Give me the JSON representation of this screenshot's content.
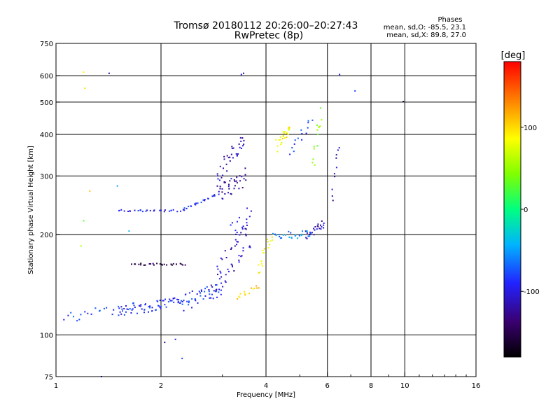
{
  "chart_data": {
    "type": "scatter",
    "title": "Tromsø 20180112 20:26:00–20:27:43",
    "subtitle": "RwPretec (8p)",
    "xlabel": "Frequency [MHz]",
    "ylabel": "Stationary phase Virtual Height [km]",
    "x_scale": "log",
    "y_scale": "log",
    "xlim": [
      1,
      16
    ],
    "ylim": [
      75,
      750
    ],
    "x_ticks": [
      1,
      2,
      4,
      6,
      8,
      10,
      16
    ],
    "x_tick_labels": [
      "1",
      "2",
      "4",
      "6",
      "8",
      "10",
      "16"
    ],
    "x_gridlines": [
      2,
      4,
      6,
      8,
      10
    ],
    "y_ticks": [
      75,
      100,
      200,
      300,
      400,
      500,
      600,
      750
    ],
    "y_tick_labels": [
      "75",
      "100",
      "200",
      "300",
      "400",
      "500",
      "600",
      "750"
    ],
    "y_gridlines": [
      100,
      200,
      300,
      400,
      500,
      600
    ],
    "grid": true,
    "legend": {
      "title": "Phases",
      "lines": [
        "mean, sd,O: -85.5, 23.1",
        "mean, sd,X: 89.8, 27.0"
      ],
      "placement": "top-right"
    },
    "colorbar": {
      "label": "[deg]",
      "range": [
        -180,
        180
      ],
      "ticks": [
        -100,
        0,
        100
      ],
      "tick_labels": [
        "-100",
        "0",
        "100"
      ],
      "placement": "right"
    },
    "series": [
      {
        "traces": [
          {
            "x0": 1.5,
            "x1": 2.3,
            "y0": 236,
            "y1": 236,
            "n": 28,
            "phase": -95,
            "jit": 3
          },
          {
            "x0": 2.3,
            "x1": 2.9,
            "y0": 236,
            "y1": 265,
            "n": 22,
            "phase": -90,
            "jit": 4
          },
          {
            "x0": 2.9,
            "x1": 3.5,
            "y0": 265,
            "y1": 300,
            "n": 36,
            "phase": -120,
            "jit": 40
          },
          {
            "x0": 2.9,
            "x1": 3.5,
            "y0": 300,
            "y1": 390,
            "n": 34,
            "phase": -115,
            "jit": 40
          },
          {
            "x0": 1.65,
            "x1": 2.35,
            "y0": 163,
            "y1": 163,
            "n": 26,
            "phase": -150,
            "jit": 2
          },
          {
            "x0": 1.5,
            "x1": 2.3,
            "y0": 118,
            "y1": 125,
            "n": 70,
            "phase": -90,
            "jit": 10
          },
          {
            "x0": 2.3,
            "x1": 3.0,
            "y0": 125,
            "y1": 138,
            "n": 45,
            "phase": -85,
            "jit": 14
          },
          {
            "x0": 2.8,
            "x1": 3.6,
            "y0": 138,
            "y1": 200,
            "n": 50,
            "phase": -110,
            "jit": 35
          },
          {
            "x0": 3.2,
            "x1": 3.6,
            "y0": 200,
            "y1": 240,
            "n": 16,
            "phase": -100,
            "jit": 30
          },
          {
            "x0": 3.3,
            "x1": 3.8,
            "y0": 130,
            "y1": 140,
            "n": 14,
            "phase": 100,
            "jit": 5
          },
          {
            "x0": 3.8,
            "x1": 4.2,
            "y0": 150,
            "y1": 200,
            "n": 18,
            "phase": 90,
            "jit": 20
          },
          {
            "x0": 4.2,
            "x1": 5.4,
            "y0": 200,
            "y1": 200,
            "n": 26,
            "phase": -60,
            "jit": 10
          },
          {
            "x0": 5.2,
            "x1": 5.9,
            "y0": 200,
            "y1": 215,
            "n": 24,
            "phase": -110,
            "jit": 12
          },
          {
            "x0": 4.3,
            "x1": 4.7,
            "y0": 370,
            "y1": 420,
            "n": 24,
            "phase": 90,
            "jit": 30
          },
          {
            "x0": 4.7,
            "x1": 5.4,
            "y0": 350,
            "y1": 440,
            "n": 14,
            "phase": -80,
            "jit": 30
          },
          {
            "x0": 5.4,
            "x1": 5.8,
            "y0": 320,
            "y1": 460,
            "n": 14,
            "phase": 40,
            "jit": 40
          },
          {
            "x0": 1.05,
            "x1": 1.5,
            "y0": 112,
            "y1": 120,
            "n": 18,
            "phase": -80,
            "jit": 8
          },
          {
            "x0": 6.2,
            "x1": 6.5,
            "y0": 250,
            "y1": 370,
            "n": 10,
            "phase": -110,
            "jit": 20
          }
        ]
      },
      {
        "x": [
          1.2,
          1.42,
          1.21,
          6.5,
          7.2,
          9.9,
          3.45,
          3.4,
          1.25,
          1.2,
          1.18,
          2.2,
          2.3,
          1.35,
          2.05,
          1.5,
          1.62
        ],
        "y": [
          615,
          610,
          550,
          605,
          540,
          502,
          610,
          605,
          270,
          220,
          185,
          97,
          85,
          75,
          95,
          280,
          205
        ],
        "phase": [
          90,
          -120,
          100,
          -90,
          -80,
          -150,
          -120,
          -90,
          110,
          30,
          60,
          -100,
          -80,
          -110,
          -130,
          -50,
          -40
        ]
      }
    ]
  }
}
